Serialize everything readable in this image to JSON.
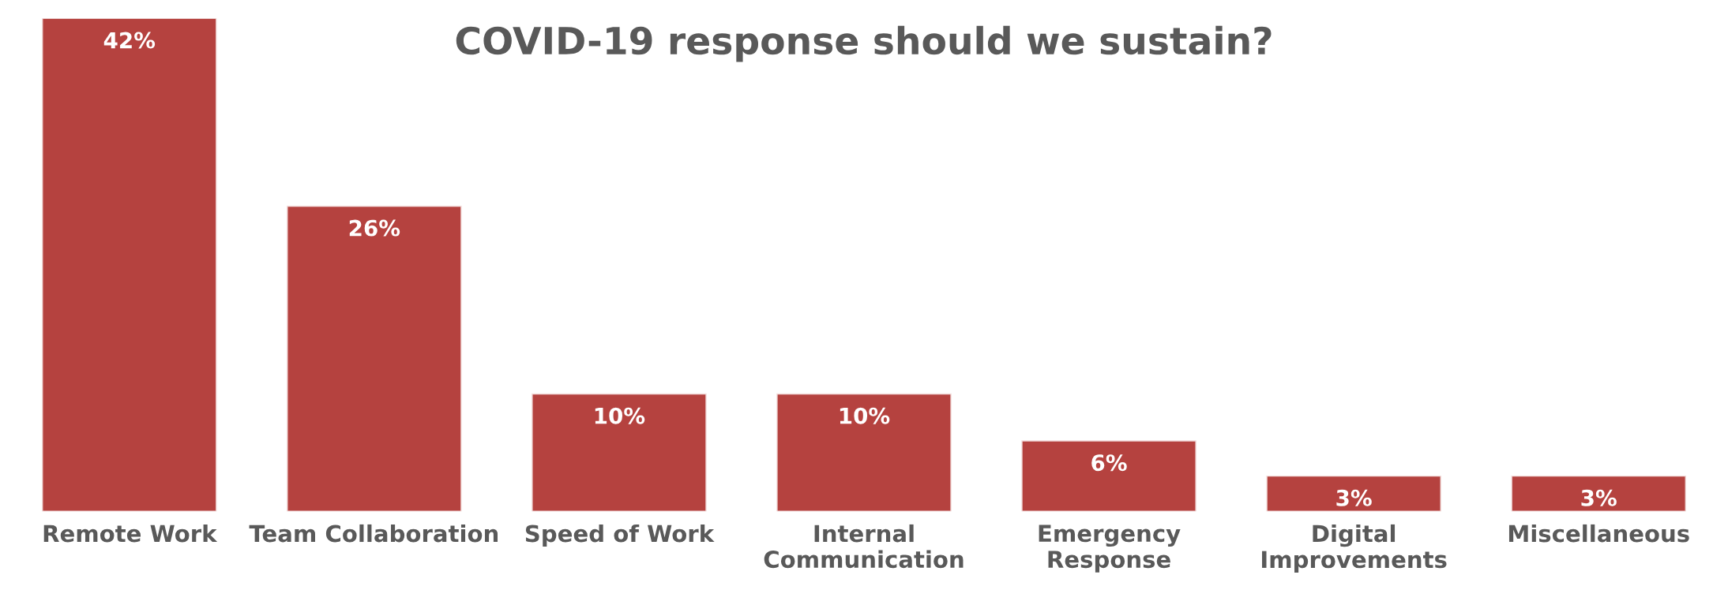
{
  "chart_data": {
    "type": "bar",
    "title": "COVID-19 response should we sustain?",
    "categories": [
      "Remote Work",
      "Team Collaboration",
      "Speed of Work",
      "Internal\nCommunication",
      "Emergency\nResponse",
      "Digital\nImprovements",
      "Miscellaneous"
    ],
    "values": [
      42,
      26,
      10,
      10,
      6,
      3,
      3
    ],
    "value_labels": [
      "42%",
      "26%",
      "10%",
      "10%",
      "6%",
      "3%",
      "3%"
    ],
    "color": "#b5423f"
  }
}
